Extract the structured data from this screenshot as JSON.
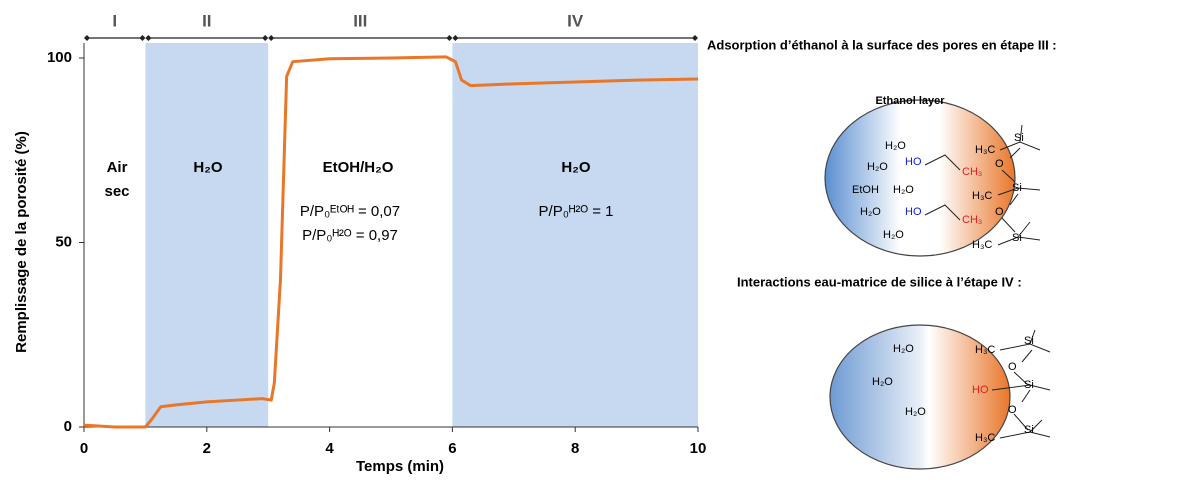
{
  "chart_data": {
    "type": "line",
    "x_label": "Temps (min)",
    "y_label": "Remplissage de la porosité (%)",
    "xlim": [
      0,
      10
    ],
    "xticks": [
      0,
      2,
      4,
      6,
      8,
      10
    ],
    "ylim": [
      0,
      100
    ],
    "yticks": [
      0,
      50,
      100
    ],
    "shade_color": "#c6d9f0",
    "phases": [
      {
        "label": "I",
        "start": 0,
        "end": 1,
        "shaded": false
      },
      {
        "label": "II",
        "start": 1,
        "end": 3,
        "shaded": true
      },
      {
        "label": "III",
        "start": 3,
        "end": 6,
        "shaded": false
      },
      {
        "label": "IV",
        "start": 6,
        "end": 10,
        "shaded": true
      }
    ],
    "annotations": [
      "Air",
      "sec",
      "H₂O",
      "EtOH/H₂O",
      "P/P₀ᴱᵗᴼᴴ = 0,07",
      "P/P₀ᴴ²ᴼ = 0,97",
      "H₂O",
      "P/P₀ᴴ²ᴼ = 1"
    ],
    "series": [
      {
        "color": "#e8772a",
        "x": [
          0,
          0.5,
          1,
          1.1,
          1.25,
          1.5,
          2,
          2.5,
          2.9,
          3.05,
          3.1,
          3.2,
          3.3,
          3.4,
          4,
          5,
          5.9,
          6.05,
          6.15,
          6.3,
          7,
          8,
          9,
          10
        ],
        "values": [
          0.5,
          0,
          0,
          2,
          5.5,
          6,
          6.8,
          7.3,
          7.7,
          7.3,
          12,
          40,
          95,
          99,
          99.8,
          100,
          100.3,
          99,
          94,
          92.5,
          93,
          93.5,
          94,
          94.3
        ]
      }
    ]
  },
  "diagrams": [
    {
      "title": "Adsorption d’éthanol à la surface des pores en étape III :",
      "labels": [
        "Ethanol layer",
        "H₂O",
        "H₂O",
        "HO",
        "CH₃",
        "EtOH",
        "H₂O",
        "H₂O",
        "HO",
        "CH₃",
        "H₂O",
        "H₃C",
        "Si",
        "O",
        "H₃C",
        "Si",
        "O",
        "H₃C",
        "Si"
      ]
    },
    {
      "title": "Interactions eau-matrice de silice à l’étape  IV :",
      "labels": [
        "H₂O",
        "H₂O",
        "H₂O",
        "H₃C",
        "Si",
        "O",
        "HO",
        "Si",
        "O",
        "H₃C",
        "Si"
      ]
    }
  ]
}
